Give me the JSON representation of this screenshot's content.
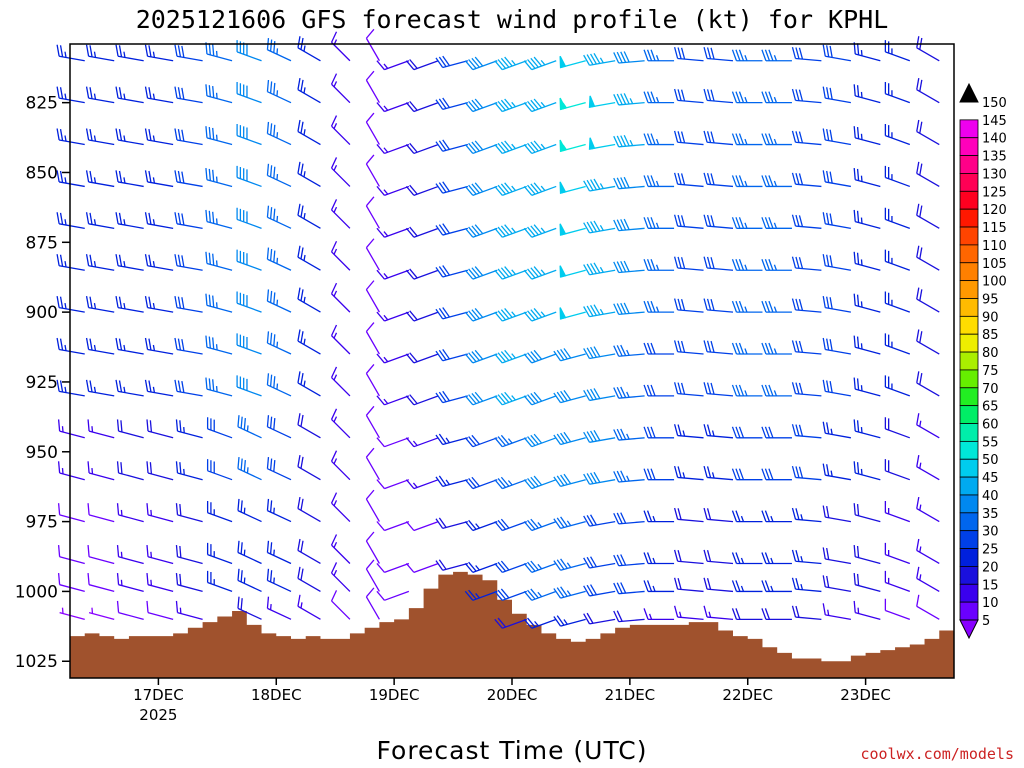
{
  "chart_data": {
    "type": "wind-barb-time-height",
    "title": "2025121606 GFS forecast wind profile (kt) for KPHL",
    "xlabel": "Forecast Time (UTC)",
    "ylabel": "",
    "units": "kt",
    "credit": "coolwx.com/models",
    "y_ticks": [
      825,
      850,
      875,
      900,
      925,
      950,
      975,
      1000,
      1025
    ],
    "x_ticks": [
      {
        "label": "17DEC",
        "sublabel": "2025",
        "hour": 18
      },
      {
        "label": "18DEC",
        "sublabel": "",
        "hour": 42
      },
      {
        "label": "19DEC",
        "sublabel": "",
        "hour": 66
      },
      {
        "label": "20DEC",
        "sublabel": "",
        "hour": 90
      },
      {
        "label": "21DEC",
        "sublabel": "",
        "hour": 114
      },
      {
        "label": "22DEC",
        "sublabel": "",
        "hour": 138
      },
      {
        "label": "23DEC",
        "sublabel": "",
        "hour": 162
      }
    ],
    "x_range_hours": [
      0,
      180
    ],
    "y_range_hpa": [
      804,
      1031
    ],
    "forecast_step_hours": 6,
    "pressure_levels": [
      810,
      825,
      840,
      855,
      870,
      885,
      900,
      915,
      930,
      945,
      960,
      975,
      990,
      1000,
      1010
    ],
    "colorbar_levels": [
      5,
      10,
      15,
      20,
      25,
      30,
      35,
      40,
      45,
      50,
      55,
      60,
      65,
      70,
      75,
      80,
      85,
      90,
      95,
      100,
      105,
      110,
      115,
      120,
      125,
      130,
      135,
      140,
      145,
      150
    ],
    "colorbar_colors": [
      "#8800ff",
      "#6a00ff",
      "#3a00ee",
      "#1a10dd",
      "#0020dd",
      "#0040e8",
      "#0066ee",
      "#0088f0",
      "#00aaf0",
      "#00ccee",
      "#00e8d8",
      "#00eeaa",
      "#00ee66",
      "#22ee22",
      "#66ee00",
      "#aaee00",
      "#eeee00",
      "#ffdd00",
      "#ffbb00",
      "#ff9900",
      "#ff8000",
      "#ff6600",
      "#ff4400",
      "#ff1800",
      "#ff0020",
      "#ff0055",
      "#ff0088",
      "#ff00bb",
      "#ee00ee",
      "#000000"
    ],
    "surface_pressure": {
      "hours": [
        0,
        3,
        6,
        9,
        12,
        15,
        18,
        21,
        24,
        27,
        30,
        33,
        36,
        39,
        42,
        45,
        48,
        51,
        54,
        57,
        60,
        63,
        66,
        69,
        72,
        75,
        78,
        81,
        84,
        87,
        90,
        93,
        96,
        99,
        102,
        105,
        108,
        111,
        114,
        117,
        120,
        123,
        126,
        129,
        132,
        135,
        138,
        141,
        144,
        147,
        150,
        153,
        156,
        159,
        162,
        165,
        168,
        171,
        174,
        177,
        180
      ],
      "values": [
        1016,
        1015,
        1016,
        1017,
        1016,
        1016,
        1016,
        1015,
        1013,
        1011,
        1009,
        1007,
        1012,
        1015,
        1016,
        1017,
        1016,
        1017,
        1017,
        1015,
        1013,
        1011,
        1010,
        1006,
        999,
        994,
        993,
        994,
        996,
        1003,
        1008,
        1012,
        1015,
        1017,
        1018,
        1017,
        1015,
        1013,
        1012,
        1012,
        1012,
        1012,
        1011,
        1011,
        1014,
        1016,
        1017,
        1020,
        1022,
        1024,
        1024,
        1025,
        1025,
        1023,
        1022,
        1021,
        1020,
        1019,
        1017,
        1014,
        1011
      ]
    },
    "wind_series": [
      {
        "level": 810,
        "speeds": [
          25,
          25,
          25,
          25,
          30,
          35,
          40,
          35,
          25,
          15,
          10,
          15,
          20,
          30,
          40,
          45,
          45,
          50,
          45,
          40,
          35,
          30,
          30,
          35,
          35,
          30,
          30,
          25,
          25,
          20,
          15,
          15
        ],
        "dirs": [
          280,
          280,
          280,
          280,
          280,
          285,
          290,
          295,
          300,
          315,
          330,
          250,
          250,
          255,
          250,
          250,
          250,
          255,
          260,
          265,
          270,
          275,
          275,
          270,
          270,
          275,
          280,
          285,
          290,
          300,
          310,
          290
        ]
      },
      {
        "level": 825,
        "speeds": [
          25,
          25,
          25,
          25,
          30,
          35,
          40,
          35,
          25,
          15,
          10,
          15,
          20,
          30,
          40,
          45,
          45,
          55,
          50,
          45,
          35,
          30,
          30,
          35,
          35,
          30,
          30,
          25,
          25,
          20,
          15,
          15
        ],
        "dirs": [
          280,
          280,
          280,
          280,
          280,
          285,
          290,
          295,
          300,
          315,
          330,
          250,
          250,
          255,
          250,
          250,
          250,
          255,
          260,
          265,
          270,
          275,
          275,
          270,
          270,
          275,
          280,
          285,
          290,
          300,
          310,
          290
        ]
      },
      {
        "level": 840,
        "speeds": [
          25,
          25,
          25,
          25,
          30,
          35,
          40,
          35,
          25,
          15,
          10,
          15,
          20,
          30,
          40,
          45,
          45,
          55,
          50,
          45,
          35,
          30,
          30,
          35,
          35,
          30,
          30,
          25,
          25,
          20,
          15,
          15
        ],
        "dirs": [
          280,
          280,
          280,
          280,
          280,
          285,
          290,
          295,
          300,
          315,
          330,
          250,
          250,
          255,
          250,
          250,
          250,
          255,
          260,
          265,
          270,
          275,
          275,
          270,
          270,
          275,
          280,
          285,
          290,
          300,
          310,
          290
        ]
      },
      {
        "level": 855,
        "speeds": [
          25,
          25,
          25,
          25,
          30,
          35,
          40,
          35,
          25,
          15,
          10,
          15,
          20,
          30,
          40,
          45,
          45,
          50,
          45,
          40,
          35,
          30,
          30,
          35,
          35,
          30,
          30,
          25,
          25,
          20,
          15,
          15
        ],
        "dirs": [
          280,
          280,
          280,
          280,
          280,
          285,
          290,
          295,
          300,
          315,
          330,
          250,
          250,
          255,
          250,
          250,
          250,
          255,
          260,
          265,
          270,
          275,
          275,
          270,
          270,
          275,
          280,
          285,
          290,
          300,
          310,
          290
        ]
      },
      {
        "level": 870,
        "speeds": [
          25,
          25,
          25,
          25,
          30,
          35,
          40,
          35,
          25,
          15,
          10,
          15,
          20,
          30,
          40,
          45,
          45,
          50,
          45,
          40,
          35,
          30,
          30,
          35,
          35,
          30,
          30,
          25,
          25,
          20,
          15,
          15
        ],
        "dirs": [
          280,
          280,
          280,
          280,
          280,
          285,
          290,
          295,
          300,
          315,
          330,
          250,
          250,
          255,
          250,
          250,
          250,
          255,
          260,
          265,
          270,
          275,
          275,
          270,
          270,
          275,
          280,
          285,
          290,
          300,
          310,
          290
        ]
      },
      {
        "level": 885,
        "speeds": [
          25,
          25,
          25,
          25,
          30,
          35,
          40,
          35,
          25,
          15,
          10,
          15,
          20,
          30,
          40,
          45,
          45,
          50,
          45,
          40,
          35,
          30,
          30,
          35,
          35,
          30,
          30,
          25,
          25,
          20,
          15,
          15
        ],
        "dirs": [
          280,
          280,
          280,
          280,
          280,
          285,
          290,
          295,
          300,
          315,
          330,
          250,
          250,
          255,
          250,
          250,
          250,
          255,
          260,
          265,
          270,
          275,
          275,
          270,
          270,
          275,
          280,
          285,
          290,
          300,
          310,
          290
        ]
      },
      {
        "level": 900,
        "speeds": [
          25,
          25,
          25,
          25,
          30,
          35,
          40,
          35,
          25,
          15,
          10,
          15,
          20,
          30,
          40,
          45,
          45,
          50,
          45,
          40,
          35,
          30,
          30,
          35,
          35,
          30,
          30,
          25,
          25,
          20,
          15,
          15
        ],
        "dirs": [
          280,
          280,
          280,
          280,
          280,
          285,
          290,
          295,
          300,
          315,
          330,
          250,
          250,
          255,
          250,
          250,
          250,
          255,
          260,
          265,
          270,
          275,
          275,
          270,
          270,
          275,
          280,
          285,
          290,
          300,
          310,
          290
        ]
      },
      {
        "level": 915,
        "speeds": [
          25,
          25,
          25,
          25,
          30,
          35,
          40,
          35,
          25,
          15,
          10,
          15,
          20,
          30,
          40,
          45,
          40,
          40,
          40,
          35,
          30,
          30,
          30,
          35,
          35,
          30,
          30,
          25,
          25,
          20,
          15,
          15
        ],
        "dirs": [
          280,
          280,
          280,
          280,
          280,
          285,
          290,
          295,
          300,
          315,
          330,
          250,
          250,
          255,
          250,
          250,
          250,
          255,
          260,
          265,
          270,
          275,
          275,
          270,
          270,
          275,
          280,
          285,
          290,
          300,
          310,
          290
        ]
      },
      {
        "level": 930,
        "speeds": [
          25,
          25,
          25,
          25,
          30,
          35,
          40,
          35,
          25,
          15,
          10,
          15,
          20,
          30,
          40,
          45,
          40,
          40,
          40,
          35,
          30,
          30,
          30,
          35,
          35,
          30,
          30,
          25,
          25,
          20,
          15,
          15
        ],
        "dirs": [
          280,
          280,
          280,
          280,
          280,
          285,
          290,
          295,
          300,
          315,
          330,
          250,
          250,
          255,
          250,
          250,
          250,
          255,
          260,
          265,
          270,
          275,
          275,
          270,
          270,
          275,
          280,
          285,
          290,
          300,
          310,
          290
        ]
      },
      {
        "level": 945,
        "speeds": [
          15,
          15,
          20,
          20,
          25,
          30,
          35,
          30,
          20,
          15,
          10,
          10,
          15,
          25,
          30,
          35,
          40,
          40,
          40,
          35,
          30,
          25,
          25,
          30,
          30,
          30,
          25,
          25,
          20,
          15,
          15,
          10
        ],
        "dirs": [
          285,
          285,
          285,
          285,
          285,
          290,
          295,
          295,
          300,
          315,
          330,
          250,
          250,
          255,
          250,
          250,
          250,
          255,
          260,
          265,
          270,
          275,
          275,
          270,
          270,
          275,
          280,
          285,
          290,
          300,
          310,
          290
        ]
      },
      {
        "level": 960,
        "speeds": [
          15,
          15,
          20,
          20,
          25,
          30,
          35,
          30,
          20,
          15,
          10,
          10,
          15,
          25,
          30,
          35,
          40,
          40,
          40,
          35,
          30,
          25,
          25,
          30,
          30,
          30,
          25,
          25,
          20,
          15,
          15,
          10
        ],
        "dirs": [
          285,
          285,
          285,
          285,
          285,
          290,
          295,
          295,
          300,
          315,
          330,
          250,
          250,
          255,
          250,
          250,
          250,
          255,
          260,
          265,
          270,
          275,
          275,
          270,
          270,
          275,
          280,
          285,
          290,
          300,
          310,
          290
        ]
      },
      {
        "level": 975,
        "speeds": [
          10,
          10,
          15,
          15,
          20,
          25,
          25,
          25,
          20,
          15,
          10,
          10,
          10,
          20,
          25,
          30,
          35,
          35,
          30,
          30,
          25,
          20,
          20,
          25,
          25,
          25,
          20,
          20,
          15,
          15,
          10,
          10
        ],
        "dirs": [
          285,
          285,
          285,
          285,
          285,
          290,
          295,
          295,
          300,
          315,
          330,
          250,
          250,
          255,
          250,
          250,
          250,
          255,
          260,
          265,
          270,
          275,
          275,
          270,
          270,
          275,
          280,
          285,
          290,
          300,
          310,
          290
        ]
      },
      {
        "level": 990,
        "speeds": [
          10,
          10,
          15,
          15,
          20,
          25,
          25,
          25,
          20,
          15,
          10,
          10,
          10,
          20,
          25,
          30,
          35,
          35,
          30,
          30,
          25,
          20,
          20,
          25,
          25,
          25,
          20,
          20,
          15,
          15,
          10,
          10
        ],
        "dirs": [
          285,
          285,
          285,
          285,
          285,
          290,
          295,
          295,
          300,
          315,
          330,
          250,
          250,
          255,
          250,
          250,
          250,
          255,
          260,
          265,
          270,
          275,
          275,
          270,
          270,
          275,
          280,
          285,
          290,
          300,
          310,
          290
        ]
      },
      {
        "level": 1000,
        "speeds": [
          10,
          10,
          15,
          15,
          20,
          25,
          25,
          25,
          20,
          15,
          10,
          10,
          10,
          20,
          25,
          30,
          35,
          35,
          30,
          30,
          25,
          20,
          20,
          25,
          25,
          25,
          20,
          20,
          15,
          15,
          10,
          10
        ],
        "dirs": [
          285,
          285,
          285,
          285,
          285,
          290,
          295,
          295,
          300,
          315,
          330,
          250,
          250,
          255,
          250,
          250,
          250,
          255,
          260,
          265,
          270,
          275,
          275,
          270,
          270,
          275,
          280,
          285,
          290,
          300,
          310,
          290
        ]
      },
      {
        "level": 1010,
        "speeds": [
          5,
          5,
          10,
          10,
          15,
          15,
          20,
          15,
          15,
          10,
          10,
          10,
          10,
          15,
          15,
          20,
          25,
          25,
          20,
          20,
          15,
          15,
          15,
          20,
          20,
          20,
          15,
          15,
          10,
          10,
          10,
          10
        ],
        "dirs": [
          285,
          285,
          285,
          285,
          285,
          290,
          295,
          295,
          300,
          315,
          330,
          250,
          250,
          255,
          250,
          250,
          250,
          255,
          260,
          265,
          270,
          275,
          275,
          270,
          270,
          275,
          280,
          285,
          290,
          300,
          310,
          290
        ]
      }
    ]
  }
}
